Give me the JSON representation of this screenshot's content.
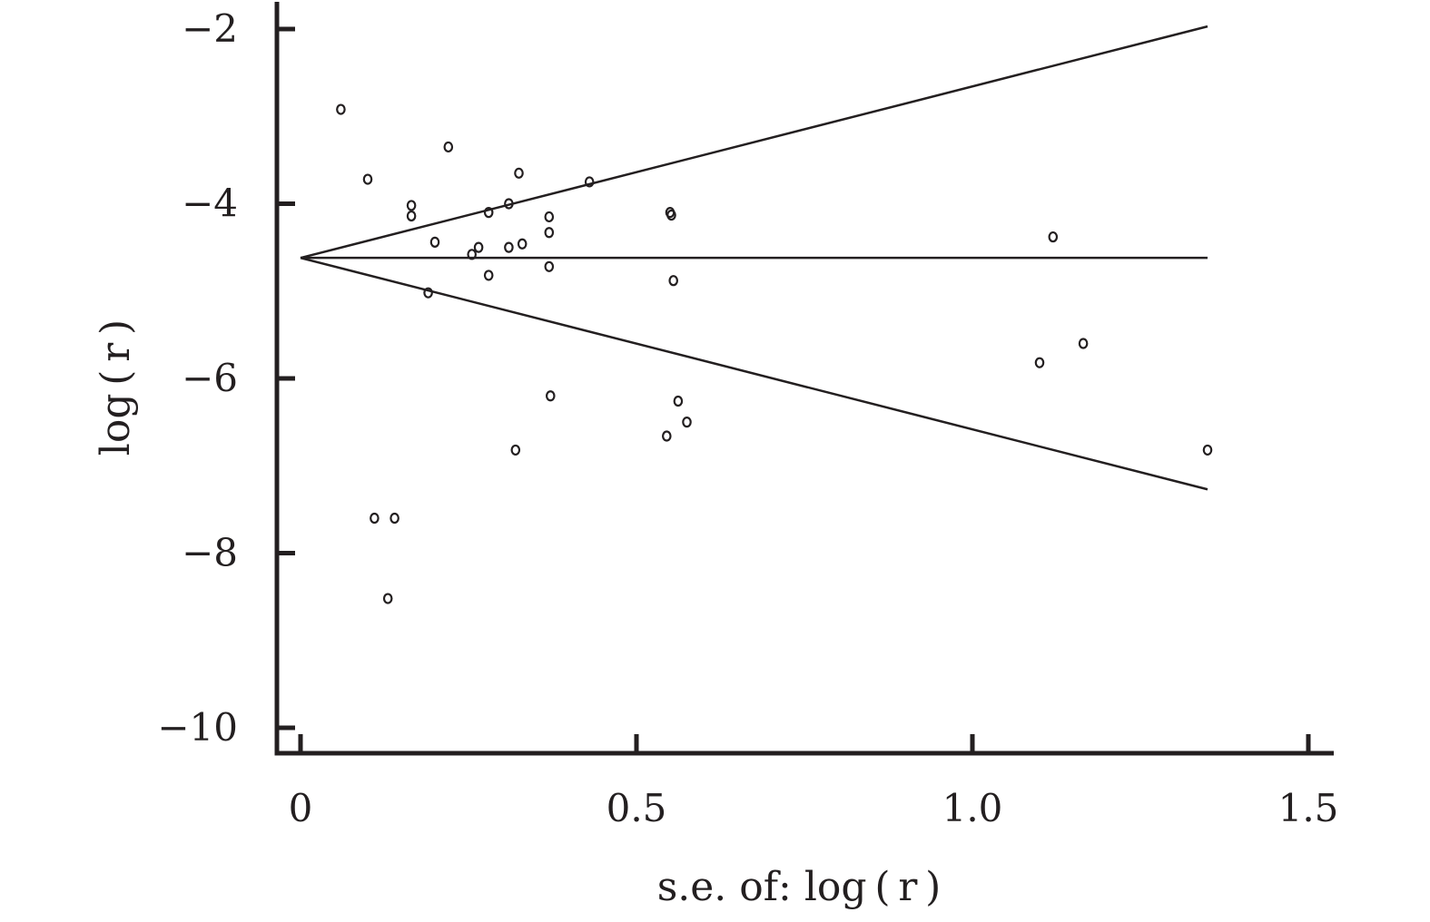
{
  "chart_data": {
    "type": "scatter",
    "title": "",
    "xlabel": "s.e. of: log ( r )",
    "ylabel": "log ( r )",
    "xlim": [
      0,
      1.5
    ],
    "ylim": [
      -10,
      -2
    ],
    "xticks": [
      0,
      0.5,
      1.0,
      1.5
    ],
    "xtick_labels": [
      "0",
      "0.5",
      "1.0",
      "1.5"
    ],
    "yticks": [
      -2,
      -4,
      -6,
      -8,
      -10
    ],
    "ytick_labels": [
      "−2",
      "−4",
      "−6",
      "−8",
      "−10"
    ],
    "grid": false,
    "pooled_estimate": -4.62,
    "funnel_lines": [
      {
        "x": [
          0,
          1.35
        ],
        "y": [
          -4.62,
          -4.62
        ]
      },
      {
        "x": [
          0,
          1.35
        ],
        "y": [
          -4.62,
          -1.97
        ]
      },
      {
        "x": [
          0,
          1.35
        ],
        "y": [
          -4.62,
          -7.27
        ]
      }
    ],
    "points": [
      {
        "x": 0.06,
        "y": -2.92
      },
      {
        "x": 0.1,
        "y": -3.72
      },
      {
        "x": 0.11,
        "y": -7.6
      },
      {
        "x": 0.13,
        "y": -8.52
      },
      {
        "x": 0.14,
        "y": -7.6
      },
      {
        "x": 0.165,
        "y": -4.02
      },
      {
        "x": 0.165,
        "y": -4.14
      },
      {
        "x": 0.19,
        "y": -5.02
      },
      {
        "x": 0.2,
        "y": -4.44
      },
      {
        "x": 0.22,
        "y": -3.35
      },
      {
        "x": 0.255,
        "y": -4.58
      },
      {
        "x": 0.265,
        "y": -4.5
      },
      {
        "x": 0.28,
        "y": -4.1
      },
      {
        "x": 0.28,
        "y": -4.82
      },
      {
        "x": 0.31,
        "y": -4.0
      },
      {
        "x": 0.31,
        "y": -4.5
      },
      {
        "x": 0.32,
        "y": -6.82
      },
      {
        "x": 0.325,
        "y": -3.65
      },
      {
        "x": 0.33,
        "y": -4.46
      },
      {
        "x": 0.37,
        "y": -4.15
      },
      {
        "x": 0.37,
        "y": -4.33
      },
      {
        "x": 0.37,
        "y": -4.72
      },
      {
        "x": 0.372,
        "y": -6.2
      },
      {
        "x": 0.43,
        "y": -3.75
      },
      {
        "x": 0.55,
        "y": -4.1
      },
      {
        "x": 0.552,
        "y": -4.13
      },
      {
        "x": 0.545,
        "y": -6.66
      },
      {
        "x": 0.555,
        "y": -4.88
      },
      {
        "x": 0.562,
        "y": -6.26
      },
      {
        "x": 0.575,
        "y": -6.5
      },
      {
        "x": 1.1,
        "y": -5.82
      },
      {
        "x": 1.12,
        "y": -4.38
      },
      {
        "x": 1.165,
        "y": -5.6
      },
      {
        "x": 1.35,
        "y": -6.82
      }
    ]
  }
}
